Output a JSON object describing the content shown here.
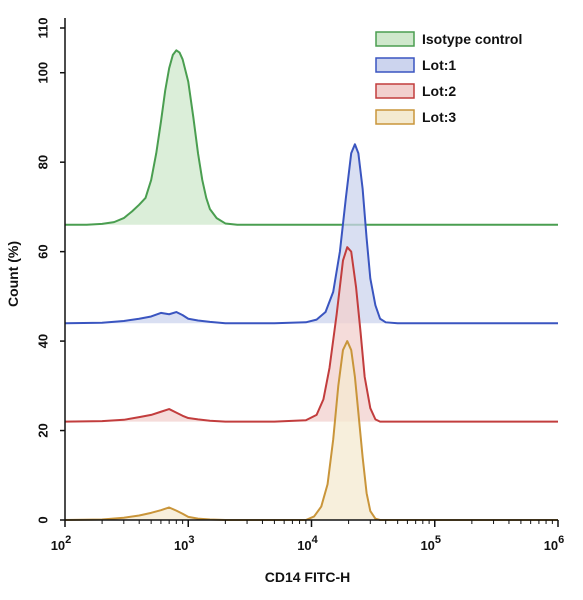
{
  "chart_data": {
    "type": "area",
    "title": "",
    "xlabel": "CD14 FITC-H",
    "ylabel": "Count  (%)",
    "xscale": "log",
    "xlim": [
      100,
      1000000
    ],
    "ylim": [
      0,
      110
    ],
    "grid": false,
    "legend_position": "top-right",
    "x_tick_values": [
      100,
      1000,
      10000,
      100000,
      1000000
    ],
    "x_ticks": [
      {
        "base": "10",
        "exp": "2"
      },
      {
        "base": "10",
        "exp": "3"
      },
      {
        "base": "10",
        "exp": "4"
      },
      {
        "base": "10",
        "exp": "5"
      },
      {
        "base": "10",
        "exp": "6"
      }
    ],
    "y_ticks": [
      "0",
      "20",
      "40",
      "60",
      "80",
      "100",
      "110"
    ],
    "y_tick_values": [
      0,
      20,
      40,
      60,
      80,
      100,
      110
    ],
    "series": [
      {
        "name": "Isotype control",
        "stroke": "#4a9e50",
        "fill": "#cfe8cc",
        "baseline": 66,
        "points": [
          [
            100,
            66
          ],
          [
            150,
            66
          ],
          [
            200,
            66.2
          ],
          [
            250,
            66.6
          ],
          [
            300,
            67.5
          ],
          [
            350,
            69
          ],
          [
            400,
            70.5
          ],
          [
            450,
            72
          ],
          [
            500,
            76
          ],
          [
            550,
            82
          ],
          [
            600,
            89
          ],
          [
            650,
            96
          ],
          [
            700,
            101
          ],
          [
            750,
            104
          ],
          [
            800,
            105
          ],
          [
            850,
            104.5
          ],
          [
            900,
            103
          ],
          [
            1000,
            98
          ],
          [
            1100,
            90
          ],
          [
            1200,
            82
          ],
          [
            1300,
            76
          ],
          [
            1400,
            72
          ],
          [
            1500,
            69.5
          ],
          [
            1700,
            67.5
          ],
          [
            2000,
            66.3
          ],
          [
            2500,
            66
          ],
          [
            1000000,
            66
          ]
        ]
      },
      {
        "name": "Lot:1",
        "stroke": "#3a55c0",
        "fill": "#ccd4ee",
        "baseline": 44,
        "points": [
          [
            100,
            44
          ],
          [
            200,
            44.1
          ],
          [
            300,
            44.5
          ],
          [
            400,
            45
          ],
          [
            500,
            45.5
          ],
          [
            600,
            46.3
          ],
          [
            700,
            46
          ],
          [
            800,
            46.5
          ],
          [
            900,
            45.8
          ],
          [
            1000,
            45
          ],
          [
            1200,
            44.6
          ],
          [
            1500,
            44.3
          ],
          [
            2000,
            44
          ],
          [
            5000,
            44
          ],
          [
            9000,
            44.2
          ],
          [
            11000,
            44.8
          ],
          [
            13000,
            46.5
          ],
          [
            15000,
            51
          ],
          [
            17000,
            60
          ],
          [
            19000,
            72
          ],
          [
            21000,
            82
          ],
          [
            22500,
            84
          ],
          [
            24000,
            82
          ],
          [
            26000,
            74
          ],
          [
            28000,
            63
          ],
          [
            30000,
            54
          ],
          [
            33000,
            48
          ],
          [
            36000,
            45
          ],
          [
            40000,
            44.2
          ],
          [
            50000,
            44
          ],
          [
            1000000,
            44
          ]
        ]
      },
      {
        "name": "Lot:2",
        "stroke": "#c23d3d",
        "fill": "#f2d0ce",
        "baseline": 22,
        "points": [
          [
            100,
            22
          ],
          [
            200,
            22.1
          ],
          [
            300,
            22.4
          ],
          [
            400,
            23
          ],
          [
            500,
            23.5
          ],
          [
            600,
            24.2
          ],
          [
            700,
            24.8
          ],
          [
            800,
            24
          ],
          [
            900,
            23.3
          ],
          [
            1000,
            22.8
          ],
          [
            1200,
            22.5
          ],
          [
            1500,
            22.2
          ],
          [
            2000,
            22
          ],
          [
            5000,
            22
          ],
          [
            9000,
            22.3
          ],
          [
            11000,
            23.5
          ],
          [
            12500,
            27
          ],
          [
            14000,
            34
          ],
          [
            16000,
            46
          ],
          [
            18000,
            58
          ],
          [
            19500,
            61
          ],
          [
            21000,
            60
          ],
          [
            23000,
            52
          ],
          [
            25000,
            42
          ],
          [
            27000,
            32
          ],
          [
            30000,
            25
          ],
          [
            33000,
            22.5
          ],
          [
            36000,
            22
          ],
          [
            1000000,
            22
          ]
        ]
      },
      {
        "name": "Lot:3",
        "stroke": "#c9953a",
        "fill": "#f4ead0",
        "baseline": 0,
        "points": [
          [
            100,
            0
          ],
          [
            200,
            0.1
          ],
          [
            300,
            0.5
          ],
          [
            400,
            1
          ],
          [
            500,
            1.6
          ],
          [
            600,
            2.2
          ],
          [
            700,
            2.8
          ],
          [
            800,
            2.1
          ],
          [
            900,
            1.4
          ],
          [
            1000,
            0.7
          ],
          [
            1200,
            0.3
          ],
          [
            1500,
            0.1
          ],
          [
            2000,
            0
          ],
          [
            9000,
            0
          ],
          [
            10500,
            0.8
          ],
          [
            12000,
            3
          ],
          [
            13500,
            8
          ],
          [
            15000,
            18
          ],
          [
            16500,
            30
          ],
          [
            18000,
            38
          ],
          [
            19500,
            40
          ],
          [
            21000,
            38
          ],
          [
            22500,
            32
          ],
          [
            24000,
            24
          ],
          [
            26000,
            14
          ],
          [
            28000,
            6
          ],
          [
            30000,
            2
          ],
          [
            33000,
            0.3
          ],
          [
            36000,
            0
          ],
          [
            1000000,
            0
          ]
        ]
      }
    ]
  }
}
